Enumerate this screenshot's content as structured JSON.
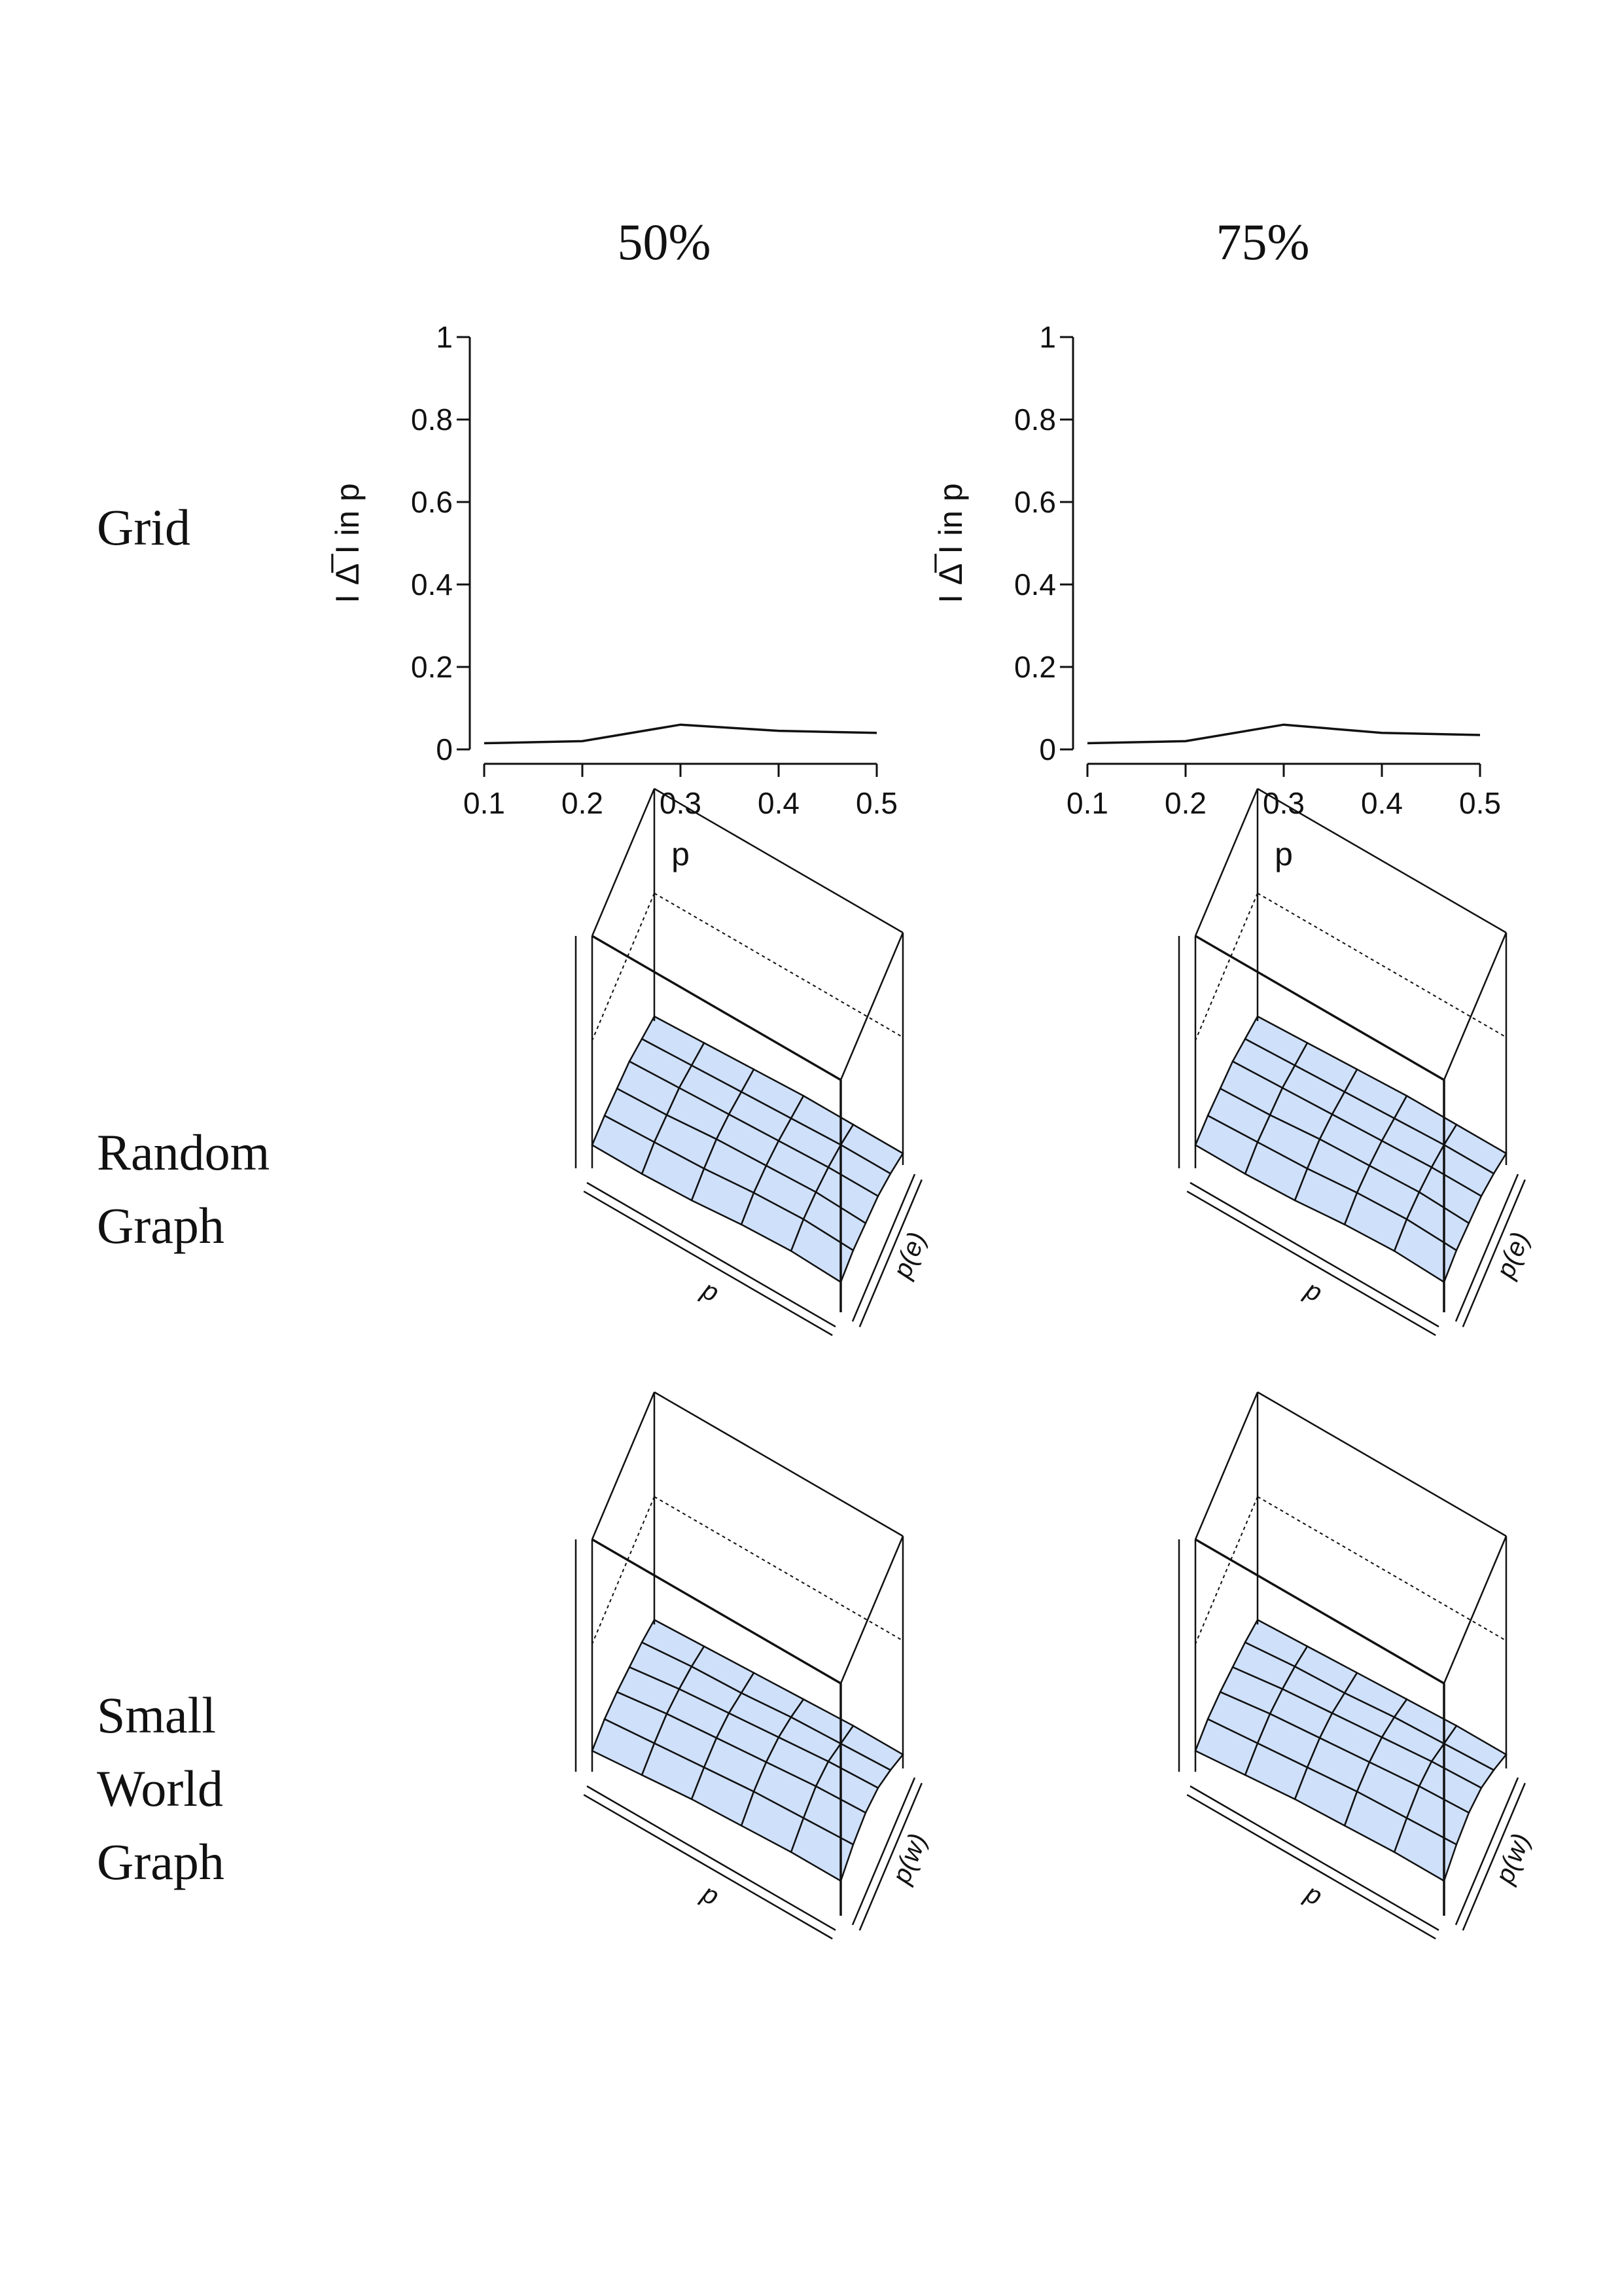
{
  "column_titles": [
    "50%",
    "75%"
  ],
  "row_labels": {
    "grid": [
      "Grid"
    ],
    "random": [
      "Random",
      "Graph"
    ],
    "small_world": [
      "Small",
      "World",
      "Graph"
    ]
  },
  "chart_data": [
    {
      "type": "line",
      "panel": "Grid 50%",
      "x": [
        0.1,
        0.2,
        0.3,
        0.4,
        0.5
      ],
      "series": [
        {
          "values": [
            0.015,
            0.02,
            0.06,
            0.045,
            0.04
          ]
        }
      ],
      "xlabel": "p",
      "ylabel": "I Δ̅ I in p",
      "xlim": [
        0.1,
        0.5
      ],
      "ylim": [
        0,
        1
      ],
      "xticks": [
        "0.1",
        "0.2",
        "0.3",
        "0.4",
        "0.5"
      ],
      "yticks": [
        "0",
        "0.2",
        "0.4",
        "0.6",
        "0.8",
        "1"
      ],
      "grid": false
    },
    {
      "type": "line",
      "panel": "Grid 75%",
      "x": [
        0.1,
        0.2,
        0.3,
        0.4,
        0.5
      ],
      "series": [
        {
          "values": [
            0.015,
            0.02,
            0.06,
            0.04,
            0.035
          ]
        }
      ],
      "xlabel": "p",
      "ylabel": "I Δ̅ I in p",
      "xlim": [
        0.1,
        0.5
      ],
      "ylim": [
        0,
        1
      ],
      "xticks": [
        "0.1",
        "0.2",
        "0.3",
        "0.4",
        "0.5"
      ],
      "yticks": [
        "0",
        "0.2",
        "0.4",
        "0.6",
        "0.8",
        "1"
      ],
      "grid": false
    },
    {
      "type": "surface",
      "panel": "Random Graph 50%",
      "axis1_label": "p",
      "axis2_label": "p(e)",
      "surface_color": "#cfe0fb",
      "z": [
        [
          0.02,
          0.05,
          0.08,
          0.09,
          0.1,
          0.1
        ],
        [
          0.03,
          0.06,
          0.09,
          0.1,
          0.11,
          0.1
        ],
        [
          0.04,
          0.07,
          0.1,
          0.12,
          0.12,
          0.11
        ],
        [
          0.05,
          0.08,
          0.11,
          0.13,
          0.14,
          0.13
        ],
        [
          0.05,
          0.09,
          0.12,
          0.14,
          0.15,
          0.14
        ],
        [
          0.05,
          0.09,
          0.12,
          0.13,
          0.14,
          0.13
        ]
      ]
    },
    {
      "type": "surface",
      "panel": "Random Graph 75%",
      "axis1_label": "p",
      "axis2_label": "p(e)",
      "surface_color": "#cfe0fb",
      "z": [
        [
          0.02,
          0.05,
          0.08,
          0.09,
          0.1,
          0.1
        ],
        [
          0.03,
          0.06,
          0.09,
          0.1,
          0.11,
          0.1
        ],
        [
          0.04,
          0.07,
          0.1,
          0.12,
          0.12,
          0.11
        ],
        [
          0.05,
          0.08,
          0.11,
          0.13,
          0.14,
          0.13
        ],
        [
          0.05,
          0.09,
          0.12,
          0.14,
          0.15,
          0.14
        ],
        [
          0.05,
          0.09,
          0.12,
          0.13,
          0.14,
          0.13
        ]
      ]
    },
    {
      "type": "surface",
      "panel": "Small World Graph 50%",
      "axis1_label": "p",
      "axis2_label": "p(w)",
      "surface_color": "#cfe0fb",
      "z": [
        [
          0.02,
          0.05,
          0.07,
          0.09,
          0.1,
          0.09
        ],
        [
          0.03,
          0.07,
          0.1,
          0.12,
          0.12,
          0.11
        ],
        [
          0.04,
          0.08,
          0.12,
          0.14,
          0.14,
          0.13
        ],
        [
          0.05,
          0.1,
          0.14,
          0.16,
          0.16,
          0.14
        ],
        [
          0.06,
          0.11,
          0.16,
          0.18,
          0.17,
          0.15
        ],
        [
          0.06,
          0.12,
          0.17,
          0.19,
          0.18,
          0.15
        ]
      ]
    },
    {
      "type": "surface",
      "panel": "Small World Graph 75%",
      "axis1_label": "p",
      "axis2_label": "p(w)",
      "surface_color": "#cfe0fb",
      "z": [
        [
          0.02,
          0.05,
          0.07,
          0.09,
          0.1,
          0.09
        ],
        [
          0.03,
          0.07,
          0.1,
          0.12,
          0.12,
          0.11
        ],
        [
          0.04,
          0.08,
          0.12,
          0.14,
          0.14,
          0.13
        ],
        [
          0.05,
          0.1,
          0.14,
          0.16,
          0.16,
          0.14
        ],
        [
          0.06,
          0.11,
          0.16,
          0.18,
          0.17,
          0.15
        ],
        [
          0.06,
          0.12,
          0.17,
          0.19,
          0.18,
          0.15
        ]
      ]
    }
  ]
}
